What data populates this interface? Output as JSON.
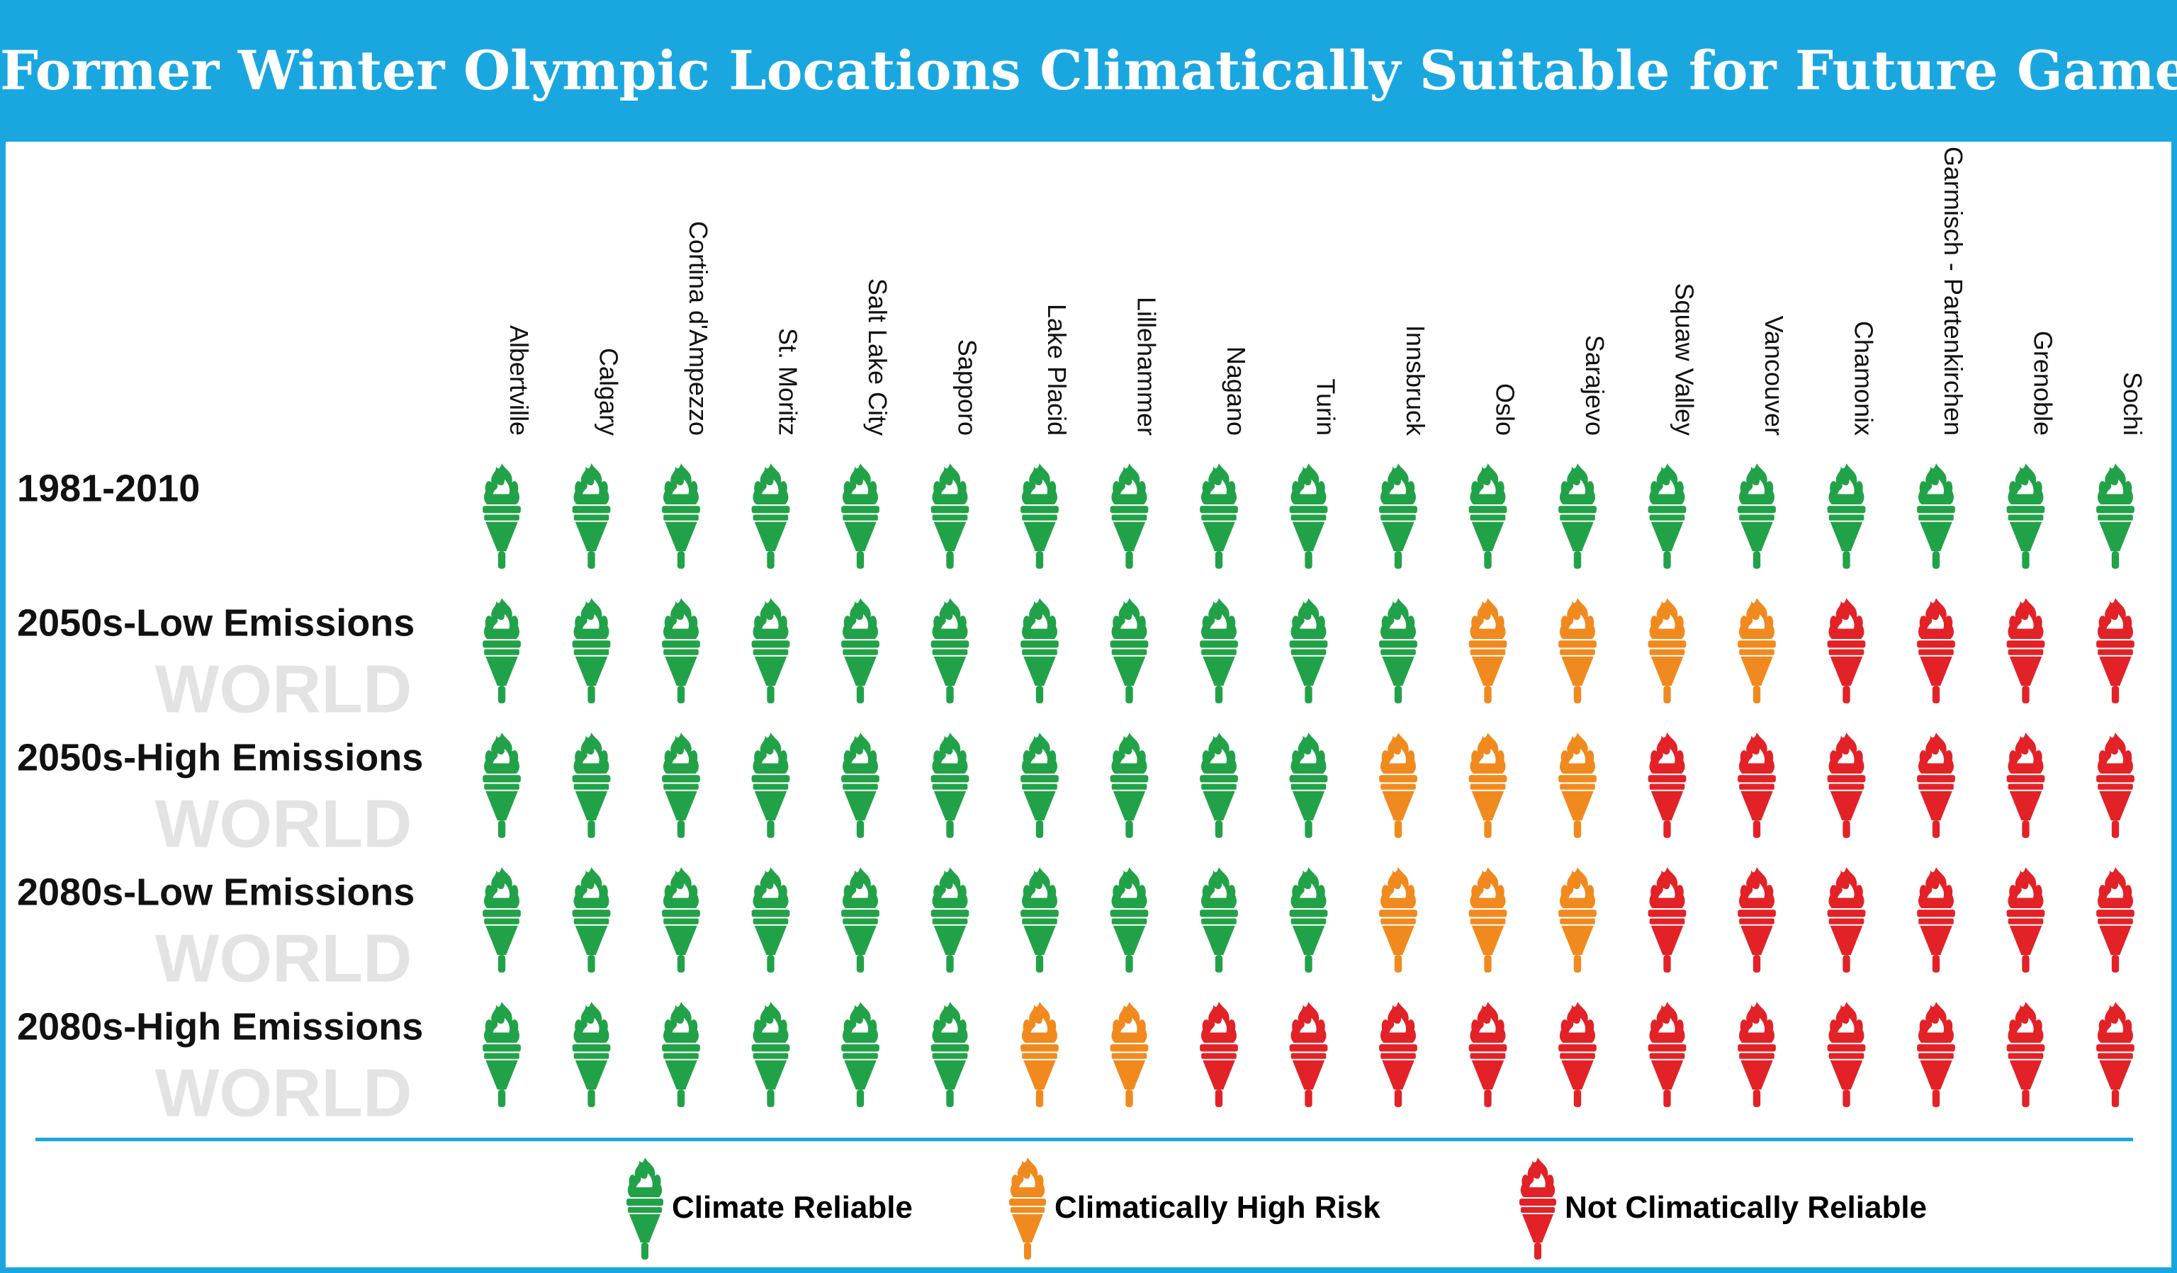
{
  "title": "Former Winter Olympic Locations Climatically Suitable for Future Games",
  "watermark": "WORLD",
  "colors": {
    "banner": "#1aa7e0",
    "reliable": "#22a248",
    "high_risk": "#f18a1e",
    "not_reliable": "#e22227",
    "watermark": "#e3e3e3"
  },
  "legend": [
    {
      "status": "reliable",
      "label": "Climate Reliable",
      "icon": "torch-icon"
    },
    {
      "status": "high_risk",
      "label": "Climatically High Risk",
      "icon": "torch-icon"
    },
    {
      "status": "not_reliable",
      "label": "Not Climatically  Reliable",
      "icon": "torch-icon"
    }
  ],
  "chart_data": {
    "type": "table",
    "title": "Former Winter Olympic Locations Climatically Suitable for Future Games",
    "columns": [
      "Albertville",
      "Calgary",
      "Cortina d'Ampezzo",
      "St. Moritz",
      "Salt Lake City",
      "Sapporo",
      "Lake Placid",
      "Lillehammer",
      "Nagano",
      "Turin",
      "Innsbruck",
      "Oslo",
      "Sarajevo",
      "Squaw Valley",
      "Vancouver",
      "Chamonix",
      "Garmisch - Partenkirchen",
      "Grenoble",
      "Sochi"
    ],
    "rows": [
      {
        "label": "1981-2010",
        "values": [
          "reliable",
          "reliable",
          "reliable",
          "reliable",
          "reliable",
          "reliable",
          "reliable",
          "reliable",
          "reliable",
          "reliable",
          "reliable",
          "reliable",
          "reliable",
          "reliable",
          "reliable",
          "reliable",
          "reliable",
          "reliable",
          "reliable"
        ]
      },
      {
        "label": "2050s-Low Emissions",
        "values": [
          "reliable",
          "reliable",
          "reliable",
          "reliable",
          "reliable",
          "reliable",
          "reliable",
          "reliable",
          "reliable",
          "reliable",
          "reliable",
          "high_risk",
          "high_risk",
          "high_risk",
          "high_risk",
          "not_reliable",
          "not_reliable",
          "not_reliable",
          "not_reliable"
        ]
      },
      {
        "label": "2050s-High Emissions",
        "values": [
          "reliable",
          "reliable",
          "reliable",
          "reliable",
          "reliable",
          "reliable",
          "reliable",
          "reliable",
          "reliable",
          "reliable",
          "high_risk",
          "high_risk",
          "high_risk",
          "not_reliable",
          "not_reliable",
          "not_reliable",
          "not_reliable",
          "not_reliable",
          "not_reliable"
        ]
      },
      {
        "label": "2080s-Low Emissions",
        "values": [
          "reliable",
          "reliable",
          "reliable",
          "reliable",
          "reliable",
          "reliable",
          "reliable",
          "reliable",
          "reliable",
          "reliable",
          "high_risk",
          "high_risk",
          "high_risk",
          "not_reliable",
          "not_reliable",
          "not_reliable",
          "not_reliable",
          "not_reliable",
          "not_reliable"
        ]
      },
      {
        "label": "2080s-High Emissions",
        "values": [
          "reliable",
          "reliable",
          "reliable",
          "reliable",
          "reliable",
          "reliable",
          "high_risk",
          "high_risk",
          "not_reliable",
          "not_reliable",
          "not_reliable",
          "not_reliable",
          "not_reliable",
          "not_reliable",
          "not_reliable",
          "not_reliable",
          "not_reliable",
          "not_reliable",
          "not_reliable"
        ]
      }
    ],
    "legend_position": "bottom"
  }
}
